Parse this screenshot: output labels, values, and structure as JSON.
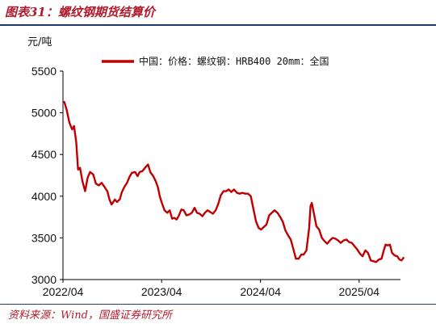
{
  "header": {
    "title": "图表31：螺纹钢期货结算价"
  },
  "footer": {
    "source": "资料来源：Wind，国盛证券研究所"
  },
  "colors": {
    "series": "#c00000",
    "accent": "#b01c2e",
    "rule": "#1f3b6e"
  },
  "chart_data": {
    "type": "line",
    "title": "",
    "xlabel": "",
    "ylabel": "元/吨",
    "ylim": [
      3000,
      5500
    ],
    "yticks": [
      3000,
      3500,
      4000,
      4500,
      5000,
      5500
    ],
    "xlim": [
      "2022-04",
      "2025-09"
    ],
    "xticks": [
      "2022/04",
      "2023/04",
      "2024/04",
      "2025/04"
    ],
    "grid": false,
    "legend": "top",
    "series": [
      {
        "name": "中国：价格：螺纹钢：HRB400 20mm：全国",
        "color": "#c00000",
        "points": [
          [
            "2022-04-06",
            5130
          ],
          [
            "2022-04-15",
            5030
          ],
          [
            "2022-04-25",
            4880
          ],
          [
            "2022-05-05",
            4800
          ],
          [
            "2022-05-12",
            4840
          ],
          [
            "2022-05-20",
            4650
          ],
          [
            "2022-05-27",
            4320
          ],
          [
            "2022-06-03",
            4340
          ],
          [
            "2022-06-12",
            4180
          ],
          [
            "2022-06-22",
            4060
          ],
          [
            "2022-07-01",
            4220
          ],
          [
            "2022-07-10",
            4290
          ],
          [
            "2022-07-22",
            4260
          ],
          [
            "2022-08-01",
            4150
          ],
          [
            "2022-08-12",
            4130
          ],
          [
            "2022-08-22",
            4160
          ],
          [
            "2022-09-02",
            4110
          ],
          [
            "2022-09-12",
            4060
          ],
          [
            "2022-09-20",
            3960
          ],
          [
            "2022-09-28",
            3900
          ],
          [
            "2022-10-10",
            3960
          ],
          [
            "2022-10-18",
            3930
          ],
          [
            "2022-10-28",
            3960
          ],
          [
            "2022-11-05",
            4050
          ],
          [
            "2022-11-14",
            4110
          ],
          [
            "2022-11-24",
            4160
          ],
          [
            "2022-12-03",
            4230
          ],
          [
            "2022-12-12",
            4280
          ],
          [
            "2022-12-24",
            4290
          ],
          [
            "2023-01-02",
            4240
          ],
          [
            "2023-01-10",
            4290
          ],
          [
            "2023-01-20",
            4300
          ],
          [
            "2023-02-01",
            4350
          ],
          [
            "2023-02-10",
            4380
          ],
          [
            "2023-02-18",
            4290
          ],
          [
            "2023-03-01",
            4240
          ],
          [
            "2023-03-10",
            4180
          ],
          [
            "2023-03-18",
            4110
          ],
          [
            "2023-03-26",
            3990
          ],
          [
            "2023-04-03",
            3910
          ],
          [
            "2023-04-12",
            3830
          ],
          [
            "2023-04-22",
            3800
          ],
          [
            "2023-05-01",
            3830
          ],
          [
            "2023-05-10",
            3730
          ],
          [
            "2023-05-18",
            3740
          ],
          [
            "2023-05-26",
            3720
          ],
          [
            "2023-06-03",
            3760
          ],
          [
            "2023-06-13",
            3840
          ],
          [
            "2023-06-22",
            3830
          ],
          [
            "2023-07-02",
            3770
          ],
          [
            "2023-07-12",
            3780
          ],
          [
            "2023-07-22",
            3800
          ],
          [
            "2023-08-01",
            3860
          ],
          [
            "2023-08-10",
            3800
          ],
          [
            "2023-08-20",
            3790
          ],
          [
            "2023-08-30",
            3760
          ],
          [
            "2023-09-08",
            3800
          ],
          [
            "2023-09-18",
            3830
          ],
          [
            "2023-09-28",
            3810
          ],
          [
            "2023-10-08",
            3790
          ],
          [
            "2023-10-18",
            3830
          ],
          [
            "2023-10-28",
            3910
          ],
          [
            "2023-11-06",
            4010
          ],
          [
            "2023-11-16",
            4060
          ],
          [
            "2023-11-26",
            4060
          ],
          [
            "2023-12-05",
            4080
          ],
          [
            "2023-12-15",
            4050
          ],
          [
            "2023-12-25",
            4080
          ],
          [
            "2024-01-05",
            4040
          ],
          [
            "2024-01-15",
            4030
          ],
          [
            "2024-01-25",
            4040
          ],
          [
            "2024-02-05",
            4030
          ],
          [
            "2024-02-15",
            4030
          ],
          [
            "2024-02-25",
            4000
          ],
          [
            "2024-03-05",
            3860
          ],
          [
            "2024-03-15",
            3700
          ],
          [
            "2024-03-25",
            3620
          ],
          [
            "2024-04-03",
            3600
          ],
          [
            "2024-04-13",
            3630
          ],
          [
            "2024-04-23",
            3660
          ],
          [
            "2024-05-03",
            3770
          ],
          [
            "2024-05-13",
            3800
          ],
          [
            "2024-05-23",
            3830
          ],
          [
            "2024-06-03",
            3800
          ],
          [
            "2024-06-13",
            3750
          ],
          [
            "2024-06-23",
            3690
          ],
          [
            "2024-07-02",
            3590
          ],
          [
            "2024-07-12",
            3530
          ],
          [
            "2024-07-22",
            3480
          ],
          [
            "2024-08-01",
            3360
          ],
          [
            "2024-08-10",
            3250
          ],
          [
            "2024-08-20",
            3250
          ],
          [
            "2024-08-30",
            3300
          ],
          [
            "2024-09-08",
            3300
          ],
          [
            "2024-09-18",
            3350
          ],
          [
            "2024-09-28",
            3620
          ],
          [
            "2024-10-03",
            3880
          ],
          [
            "2024-10-08",
            3920
          ],
          [
            "2024-10-15",
            3800
          ],
          [
            "2024-10-25",
            3640
          ],
          [
            "2024-11-04",
            3600
          ],
          [
            "2024-11-14",
            3500
          ],
          [
            "2024-11-24",
            3460
          ],
          [
            "2024-12-04",
            3430
          ],
          [
            "2024-12-14",
            3470
          ],
          [
            "2024-12-24",
            3500
          ],
          [
            "2025-01-03",
            3490
          ],
          [
            "2025-01-13",
            3470
          ],
          [
            "2025-01-23",
            3440
          ],
          [
            "2025-02-03",
            3470
          ],
          [
            "2025-02-13",
            3480
          ],
          [
            "2025-02-23",
            3450
          ],
          [
            "2025-03-05",
            3440
          ],
          [
            "2025-03-15",
            3400
          ],
          [
            "2025-03-25",
            3360
          ],
          [
            "2025-04-04",
            3310
          ],
          [
            "2025-04-14",
            3280
          ],
          [
            "2025-04-24",
            3350
          ],
          [
            "2025-05-04",
            3320
          ],
          [
            "2025-05-14",
            3230
          ],
          [
            "2025-05-24",
            3220
          ],
          [
            "2025-06-03",
            3210
          ],
          [
            "2025-06-13",
            3240
          ],
          [
            "2025-06-23",
            3250
          ],
          [
            "2025-07-01",
            3350
          ],
          [
            "2025-07-08",
            3420
          ],
          [
            "2025-07-16",
            3410
          ],
          [
            "2025-07-24",
            3420
          ],
          [
            "2025-08-01",
            3320
          ],
          [
            "2025-08-10",
            3290
          ],
          [
            "2025-08-20",
            3280
          ],
          [
            "2025-08-28",
            3240
          ],
          [
            "2025-09-05",
            3230
          ],
          [
            "2025-09-12",
            3260
          ]
        ]
      }
    ]
  }
}
